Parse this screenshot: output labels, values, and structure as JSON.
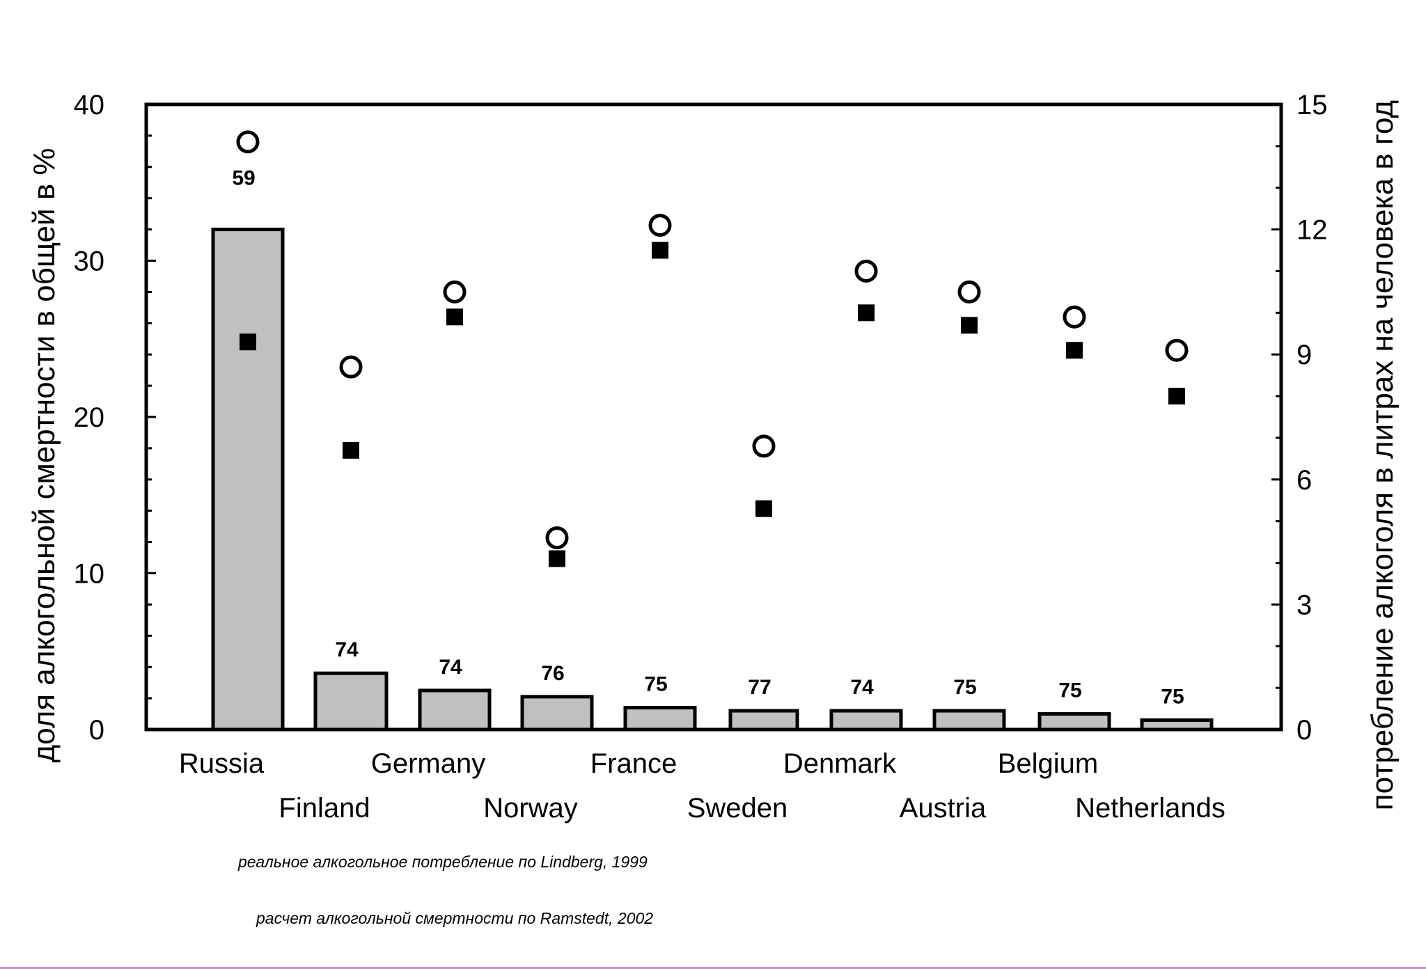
{
  "chart_data": {
    "type": "bar",
    "categories": [
      "Russia",
      "Finland",
      "Germany",
      "Norway",
      "France",
      "Sweden",
      "Denmark",
      "Austria",
      "Belgium",
      "Netherlands"
    ],
    "left_axis": {
      "label": "доля алкогольной смертности в общей в %",
      "ylim": [
        0,
        40
      ],
      "ticks": [
        "0",
        "10",
        "20",
        "30",
        "40"
      ]
    },
    "right_axis": {
      "label": "потребление алкоголя в литрах на человека в год",
      "ylim": [
        0,
        15
      ],
      "ticks": [
        "0",
        "3",
        "6",
        "9",
        "12",
        "15"
      ]
    },
    "series": [
      {
        "kind": "bar",
        "axis": "left",
        "values": [
          32.0,
          3.6,
          2.5,
          2.1,
          1.4,
          1.2,
          1.2,
          1.2,
          1.0,
          0.6
        ],
        "data_labels": [
          "59",
          "74",
          "74",
          "76",
          "75",
          "77",
          "74",
          "75",
          "75",
          "75"
        ],
        "color": "#c0c0c0"
      },
      {
        "kind": "scatter",
        "marker": "open-circle",
        "axis": "right",
        "values": [
          14.1,
          8.7,
          10.5,
          4.6,
          12.1,
          6.8,
          11.0,
          10.5,
          9.9,
          9.1
        ]
      },
      {
        "kind": "scatter",
        "marker": "filled-square",
        "axis": "right",
        "values": [
          9.3,
          6.7,
          9.9,
          4.1,
          11.5,
          5.3,
          10.0,
          9.7,
          9.1,
          8.0
        ]
      }
    ],
    "notes": [
      "реальное алкогольное потребление по Lindberg, 1999",
      "расчет алкогольной смертности по Ramstedt, 2002"
    ],
    "grid": false,
    "legend": "none"
  }
}
